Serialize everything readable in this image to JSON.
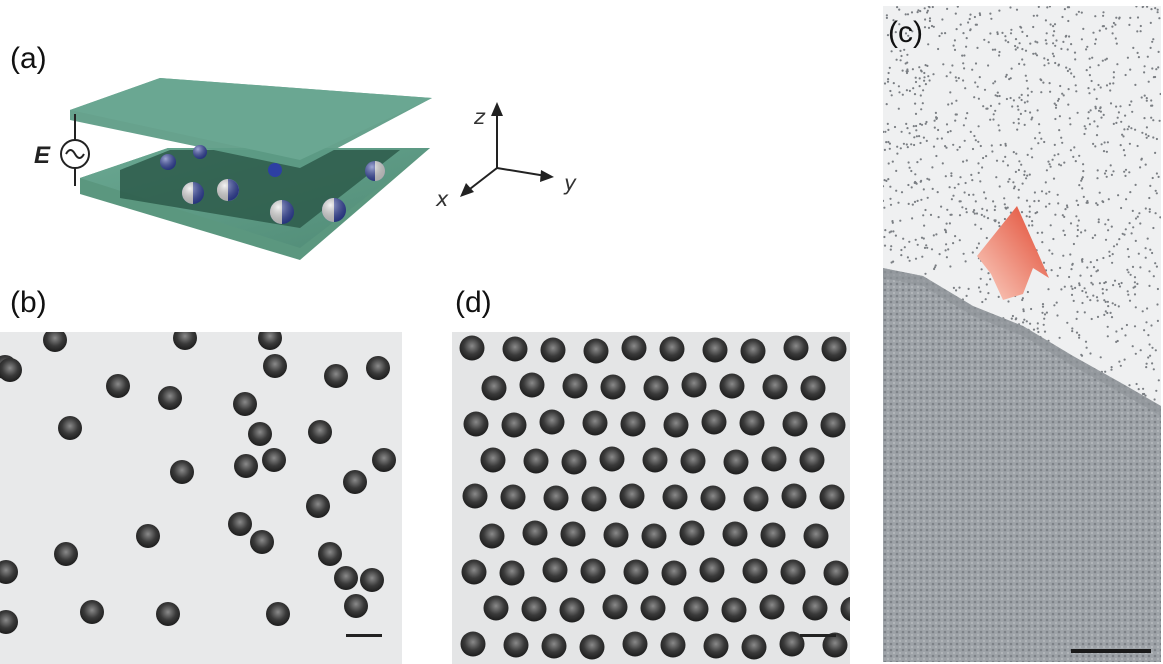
{
  "figure": {
    "panel_a": {
      "label": "(a)",
      "field_label": "E",
      "axes": {
        "x": "x",
        "y": "y",
        "z": "z"
      }
    },
    "panel_b": {
      "label": "(b)"
    },
    "panel_c": {
      "label": "(c)"
    },
    "panel_d": {
      "label": "(d)"
    },
    "colors": {
      "plate": "#5e9c86",
      "plate_shadow": "#2f5f4f",
      "sphere_blue": "#2d3fa3",
      "sphere_white": "#e6e6e6",
      "micrograph_background": "#e8e9ea",
      "particle": "#3c3c3c",
      "arrow": "#e5533a"
    }
  }
}
